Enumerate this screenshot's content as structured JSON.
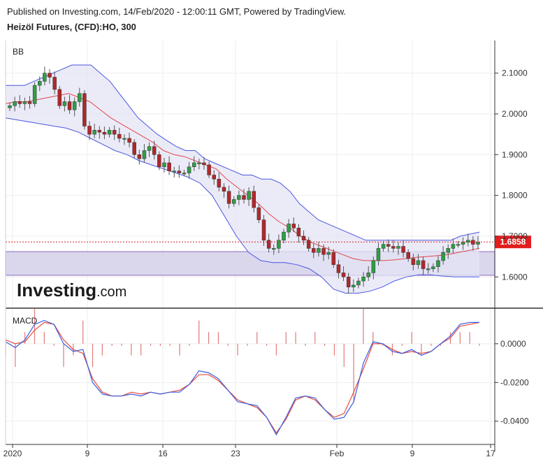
{
  "header": {
    "published": "Published on Investing.com, 14/Feb/2020 - 12:00:11 GMT, Powered by TradingView.",
    "title": "Heizöl Futures, (CFD):HO, 300"
  },
  "panels": {
    "price_label": "BB",
    "macd_label": "MACD"
  },
  "logo": {
    "main": "Investing",
    "suffix": ".com"
  },
  "colors": {
    "up": "#2e9e45",
    "down": "#b0282b",
    "band": "#4b56e0",
    "band_fill": "#e4e4f5",
    "basis": "#e04848",
    "macd": "#3a5de0",
    "signal": "#e84a3a",
    "hist": "#e07a7a",
    "zone": "#d3d0ea",
    "zone_border": "#9a7fc4"
  },
  "chart_data": [
    {
      "type": "candlestick",
      "title": "Heizöl Futures, (CFD):HO, 300",
      "indicator": "BB",
      "ylim": [
        1.525,
        2.18
      ],
      "y_ticks": [
        "2.1000",
        "2.0000",
        "1.9000",
        "1.8000",
        "1.7000",
        "1.6000"
      ],
      "x_ticks": [
        "2020",
        "9",
        "16",
        "23",
        "Feb",
        "9",
        "17"
      ],
      "last_price": "1.6858",
      "last_price_value": 1.6858,
      "support_zone": [
        1.604,
        1.662
      ],
      "candles_close": [
        2.02,
        2.03,
        2.025,
        2.03,
        2.025,
        2.07,
        2.08,
        2.1,
        2.09,
        2.06,
        2.02,
        2.03,
        2.01,
        2.03,
        2.05,
        1.97,
        1.95,
        1.96,
        1.955,
        1.95,
        1.96,
        1.95,
        1.94,
        1.94,
        1.93,
        1.9,
        1.89,
        1.91,
        1.92,
        1.9,
        1.87,
        1.88,
        1.86,
        1.86,
        1.855,
        1.855,
        1.87,
        1.88,
        1.88,
        1.875,
        1.85,
        1.84,
        1.82,
        1.81,
        1.78,
        1.79,
        1.8,
        1.79,
        1.81,
        1.77,
        1.74,
        1.69,
        1.67,
        1.67,
        1.69,
        1.71,
        1.73,
        1.72,
        1.7,
        1.69,
        1.67,
        1.66,
        1.67,
        1.655,
        1.66,
        1.63,
        1.61,
        1.6,
        1.575,
        1.58,
        1.59,
        1.6,
        1.61,
        1.64,
        1.67,
        1.68,
        1.675,
        1.67,
        1.675,
        1.66,
        1.645,
        1.63,
        1.64,
        1.62,
        1.62,
        1.625,
        1.64,
        1.66,
        1.67,
        1.68,
        1.68,
        1.685,
        1.69,
        1.68,
        1.6858
      ],
      "bb_upper": [
        2.07,
        2.07,
        2.07,
        2.08,
        2.09,
        2.1,
        2.11,
        2.12,
        2.12,
        2.12,
        2.1,
        2.08,
        2.05,
        2.02,
        1.99,
        1.97,
        1.95,
        1.935,
        1.92,
        1.91,
        1.91,
        1.89,
        1.88,
        1.87,
        1.86,
        1.85,
        1.85,
        1.84,
        1.84,
        1.83,
        1.81,
        1.78,
        1.76,
        1.74,
        1.73,
        1.72,
        1.71,
        1.7,
        1.69,
        1.69,
        1.69,
        1.69,
        1.69,
        1.69,
        1.69,
        1.69,
        1.69,
        1.69,
        1.7,
        1.705,
        1.71
      ],
      "bb_basis": [
        2.025,
        2.03,
        2.03,
        2.035,
        2.04,
        2.045,
        2.05,
        2.04,
        2.03,
        2.01,
        1.99,
        1.975,
        1.96,
        1.945,
        1.93,
        1.91,
        1.9,
        1.895,
        1.885,
        1.875,
        1.865,
        1.84,
        1.82,
        1.8,
        1.78,
        1.755,
        1.735,
        1.72,
        1.7,
        1.685,
        1.675,
        1.665,
        1.655,
        1.645,
        1.64,
        1.64,
        1.64,
        1.642,
        1.645,
        1.648,
        1.65,
        1.652,
        1.655,
        1.66,
        1.665,
        1.67
      ],
      "bb_lower": [
        1.99,
        1.985,
        1.98,
        1.975,
        1.97,
        1.965,
        1.955,
        1.94,
        1.925,
        1.91,
        1.9,
        1.885,
        1.875,
        1.865,
        1.855,
        1.845,
        1.83,
        1.8,
        1.75,
        1.7,
        1.66,
        1.64,
        1.635,
        1.635,
        1.63,
        1.62,
        1.6,
        1.57,
        1.56,
        1.56,
        1.565,
        1.575,
        1.59,
        1.6,
        1.605,
        1.605,
        1.602,
        1.6,
        1.6,
        1.6
      ]
    },
    {
      "type": "line",
      "title": "MACD",
      "ylim": [
        -0.052,
        0.018
      ],
      "y_ticks": [
        "0.0000",
        "-0.0200",
        "-0.0400"
      ],
      "macd": [
        0.001,
        -0.002,
        0.002,
        0.01,
        0.012,
        0.01,
        0.0,
        -0.004,
        -0.003,
        -0.02,
        -0.026,
        -0.027,
        -0.027,
        -0.026,
        -0.027,
        -0.025,
        -0.026,
        -0.025,
        -0.025,
        -0.021,
        -0.014,
        -0.015,
        -0.018,
        -0.024,
        -0.03,
        -0.031,
        -0.032,
        -0.038,
        -0.047,
        -0.038,
        -0.028,
        -0.027,
        -0.028,
        -0.034,
        -0.039,
        -0.038,
        -0.03,
        -0.01,
        0.001,
        0.0,
        -0.004,
        -0.005,
        -0.003,
        -0.006,
        -0.004,
        0.0,
        0.004,
        0.01,
        0.011,
        0.011
      ],
      "signal": [
        0.002,
        0.0,
        0.001,
        0.007,
        0.011,
        0.01,
        0.002,
        -0.003,
        -0.005,
        -0.018,
        -0.025,
        -0.027,
        -0.027,
        -0.025,
        -0.026,
        -0.025,
        -0.026,
        -0.025,
        -0.024,
        -0.021,
        -0.016,
        -0.016,
        -0.019,
        -0.024,
        -0.029,
        -0.031,
        -0.033,
        -0.038,
        -0.046,
        -0.039,
        -0.029,
        -0.027,
        -0.029,
        -0.034,
        -0.038,
        -0.036,
        -0.025,
        -0.013,
        0.0,
        0.0,
        -0.003,
        -0.005,
        -0.004,
        -0.005,
        -0.004,
        0.0,
        0.003,
        0.009,
        0.01,
        0.011
      ]
    }
  ]
}
